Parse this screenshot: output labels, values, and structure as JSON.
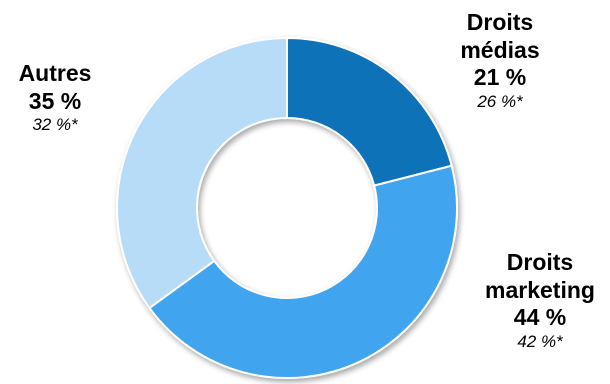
{
  "chart_data": {
    "type": "pie",
    "categories": [
      "Droits médias",
      "Droits marketing",
      "Autres"
    ],
    "values": [
      21,
      44,
      35
    ],
    "previous_values": [
      26,
      42,
      32
    ],
    "value_labels": [
      "21 %",
      "44 %",
      "35 %"
    ],
    "previous_labels": [
      "26 %*",
      "42 %*",
      "32 %*"
    ],
    "label_lines": [
      [
        "Droits",
        "médias"
      ],
      [
        "Droits",
        "marketing"
      ],
      [
        "Autres"
      ]
    ],
    "colors": [
      "#0f72b8",
      "#3fa4ef",
      "#b7dcf7"
    ],
    "style": "donut"
  }
}
